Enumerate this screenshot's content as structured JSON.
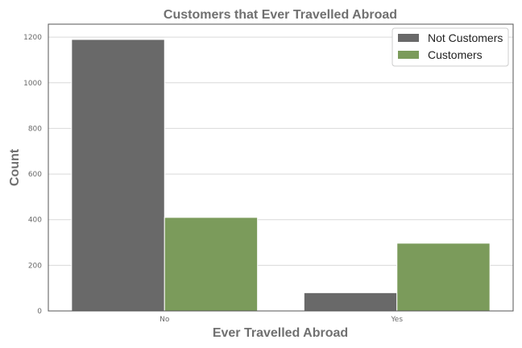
{
  "chart_data": {
    "type": "bar",
    "title": "Customers that Ever Travelled Abroad",
    "xlabel": "Ever Travelled Abroad",
    "ylabel": "Count",
    "categories": [
      "No",
      "Yes"
    ],
    "series": [
      {
        "name": "Not Customers",
        "values": [
          1190,
          80
        ],
        "color": "#696969"
      },
      {
        "name": "Customers",
        "values": [
          410,
          297
        ],
        "color": "#7b9b5b"
      }
    ],
    "ylim": [
      0,
      1257
    ],
    "yticks": [
      0,
      200,
      400,
      600,
      800,
      1000,
      1200
    ],
    "grid": "horizontal",
    "legend_position": "top-right"
  }
}
